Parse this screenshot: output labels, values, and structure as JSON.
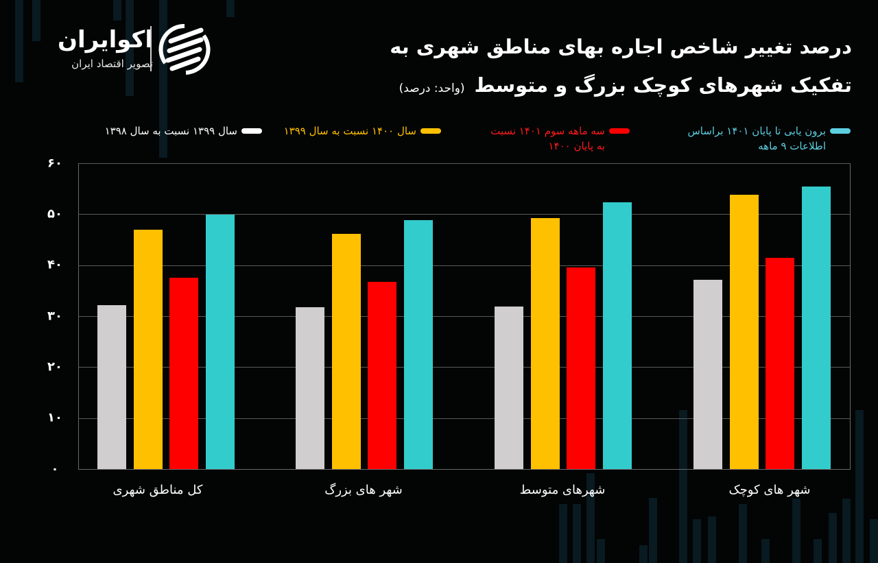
{
  "brand": {
    "name": "اکوایران",
    "tagline": "تصویر اقتصاد ایران"
  },
  "header": {
    "title_line1": "درصد تغییر شاخص اجاره بهای مناطق شهری به",
    "title_line2": "تفکیک شهرهای کوچک بزرگ و متوسط",
    "unit": "(واحد: درصد)"
  },
  "legend": [
    {
      "label": "برون یابی تا پایان ۱۴۰۱ براساس\nاطلاعات ۹ ماهه",
      "color": "#33cccc"
    },
    {
      "label": "سه ماهه سوم ۱۴۰۱ نسبت\nبه پایان ۱۴۰۰",
      "color": "#ff0000"
    },
    {
      "label": "سال ۱۴۰۰ نسبت به سال ۱۳۹۹",
      "color": "#ffc000"
    },
    {
      "label": "سال ۱۳۹۹ نسبت به سال ۱۳۹۸",
      "color": "#ffffff"
    }
  ],
  "yaxis": {
    "ticks": [
      "۰",
      "۱۰",
      "۲۰",
      "۳۰",
      "۴۰",
      "۵۰",
      "۶۰"
    ]
  },
  "chart_data": {
    "type": "bar",
    "title": "درصد تغییر شاخص اجاره بهای مناطق شهری به تفکیک شهرهای کوچک بزرگ و متوسط",
    "subtitle": "(واحد: درصد)",
    "xlabel": "",
    "ylabel": "",
    "ylim": [
      0,
      60
    ],
    "yticks": [
      0,
      10,
      20,
      30,
      40,
      50,
      60
    ],
    "grid": true,
    "legend_position": "top",
    "categories": [
      "کل مناطق شهری",
      "شهر های بزرگ",
      "شهرهای متوسط",
      "شهر های کوچک"
    ],
    "series": [
      {
        "name": "سال ۱۳۹۹ نسبت به سال ۱۳۹۸",
        "color": "#d0cece",
        "values": [
          32.1,
          31.7,
          31.9,
          37.1
        ]
      },
      {
        "name": "سال ۱۴۰۰ نسبت به سال ۱۳۹۹",
        "color": "#ffc000",
        "values": [
          47.0,
          46.1,
          49.2,
          53.8
        ]
      },
      {
        "name": "سه ماهه سوم ۱۴۰۱ نسبت به پایان ۱۴۰۰",
        "color": "#ff0000",
        "values": [
          37.5,
          36.7,
          39.5,
          41.5
        ]
      },
      {
        "name": "برون یابی تا پایان ۱۴۰۱ براساس اطلاعات ۹ ماهه",
        "color": "#33cccc",
        "values": [
          49.9,
          48.9,
          52.4,
          55.4
        ]
      }
    ]
  }
}
